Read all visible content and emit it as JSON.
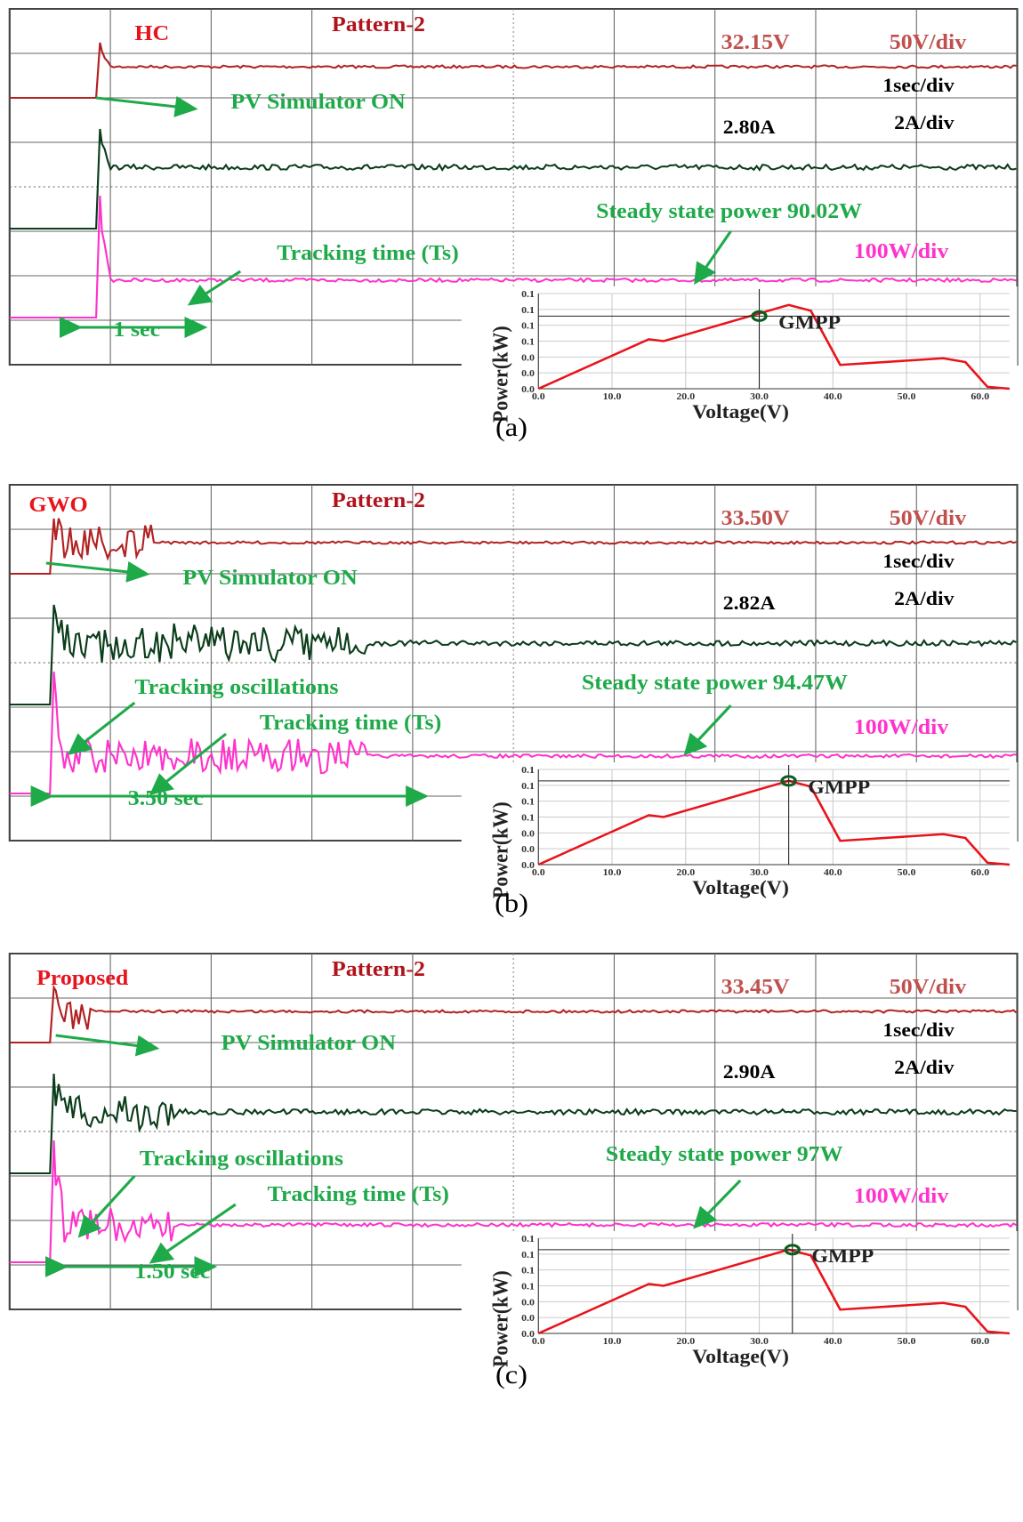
{
  "panels": [
    {
      "label": "(a)",
      "method": "HC",
      "pattern": "Pattern-2",
      "voltage": "32.15V",
      "volt_div": "50V/div",
      "time_div": "1sec/div",
      "current": "2.80A",
      "current_div": "2A/div",
      "pv_on": "PV Simulator ON",
      "power_note": "Steady state power 90.02W",
      "tracking_time": "Tracking time (Ts)",
      "power_div": "100W/div",
      "duration": "1 sec",
      "inset": {
        "y_label": "Power(kW)",
        "x_label": "Voltage(V)",
        "gmpp": "GMPP",
        "yticks": [
          "0.1",
          "0.1",
          "0.1",
          "0.1",
          "0.0",
          "0.0",
          "0.0"
        ],
        "xticks": [
          "0.0",
          "10.0",
          "20.0",
          "30.0",
          "40.0",
          "50.0",
          "60.0"
        ]
      }
    },
    {
      "label": "(b)",
      "method": "GWO",
      "pattern": "Pattern-2",
      "voltage": "33.50V",
      "volt_div": "50V/div",
      "time_div": "1sec/div",
      "current": "2.82A",
      "current_div": "2A/div",
      "pv_on": "PV Simulator ON",
      "power_note": "Steady state power 94.47W",
      "oscillations": "Tracking oscillations",
      "tracking_time": "Tracking time (Ts)",
      "power_div": "100W/div",
      "duration": "3.50 sec",
      "inset": {
        "y_label": "Power(kW)",
        "x_label": "Voltage(V)",
        "gmpp": "GMPP",
        "yticks": [
          "0.1",
          "0.1",
          "0.1",
          "0.1",
          "0.0",
          "0.0",
          "0.0"
        ],
        "xticks": [
          "0.0",
          "10.0",
          "20.0",
          "30.0",
          "40.0",
          "50.0",
          "60.0"
        ]
      }
    },
    {
      "label": "(c)",
      "method": "Proposed",
      "pattern": "Pattern-2",
      "voltage": "33.45V",
      "volt_div": "50V/div",
      "time_div": "1sec/div",
      "current": "2.90A",
      "current_div": "2A/div",
      "pv_on": "PV Simulator ON",
      "power_note": "Steady state power 97W",
      "oscillations": "Tracking oscillations",
      "tracking_time": "Tracking time (Ts)",
      "power_div": "100W/div",
      "duration": "1.50 sec",
      "inset": {
        "y_label": "Power(kW)",
        "x_label": "Voltage(V)",
        "gmpp": "GMPP",
        "yticks": [
          "0.1",
          "0.1",
          "0.1",
          "0.1",
          "0.0",
          "0.0",
          "0.0"
        ],
        "xticks": [
          "0.0",
          "10.0",
          "20.0",
          "30.0",
          "40.0",
          "50.0",
          "60.0"
        ]
      }
    }
  ]
}
